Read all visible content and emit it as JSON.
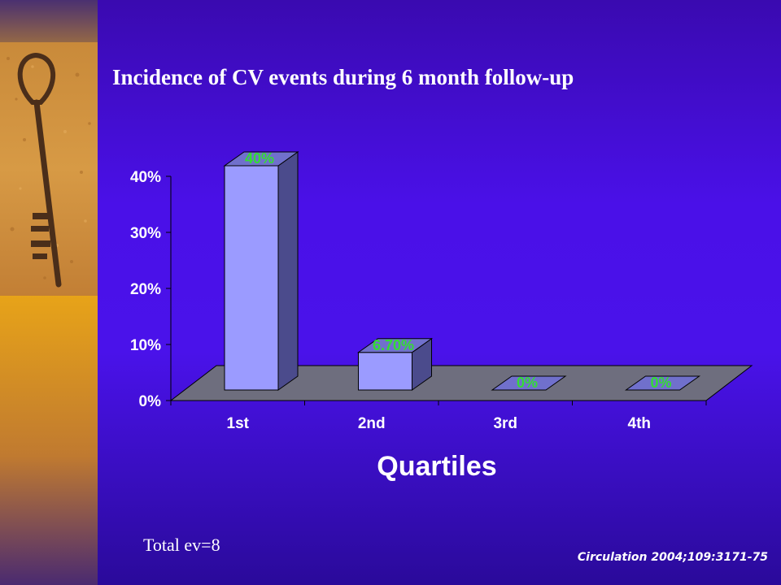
{
  "slide": {
    "title": "Incidence of CV events during 6 month follow-up",
    "footnote": "Total ev=8",
    "citation": "Circulation  2004;109:3171-75",
    "side_image": "rusty-key-photo"
  },
  "colors": {
    "background": "#4a10e8",
    "bar_front": "#9b9bff",
    "bar_side": "#4b4b8c",
    "bar_top": "#7070cc",
    "floor": "#6e6e7e",
    "data_label": "#33dd33",
    "axis_text": "#ffffff"
  },
  "chart_data": {
    "type": "bar",
    "style": "3d",
    "title": "Incidence of CV events during 6 month follow-up",
    "xlabel": "Quartiles",
    "ylabel": "",
    "categories": [
      "1st",
      "2nd",
      "3rd",
      "4th"
    ],
    "values": [
      40,
      6.7,
      0,
      0
    ],
    "data_labels": [
      "40%",
      "6.70%",
      "0%",
      "0%"
    ],
    "yticks": [
      0,
      10,
      20,
      30,
      40
    ],
    "ytick_labels": [
      "0%",
      "10%",
      "20%",
      "30%",
      "40%"
    ],
    "ylim": [
      0,
      40
    ],
    "grid": false,
    "legend": "none"
  }
}
